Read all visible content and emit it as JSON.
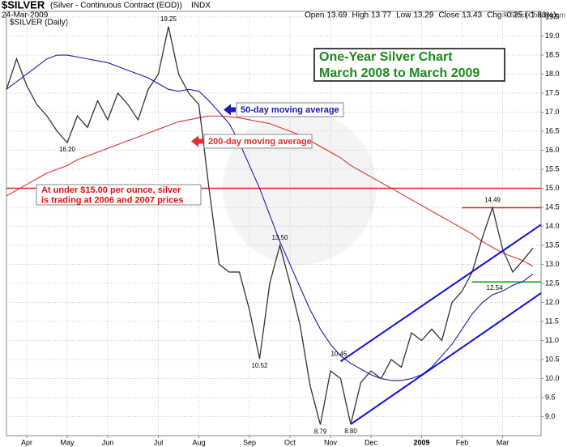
{
  "chart_data": {
    "type": "line",
    "title": "$SILVER",
    "subtitle": "(Silver - Continuous Contract (EOD))",
    "exchange": "INDX",
    "date": "24-Mar-2009",
    "credit": "© StockCharts.com",
    "quote": [
      {
        "label": "Open",
        "value": 13.69
      },
      {
        "label": "High",
        "value": 13.77
      },
      {
        "label": "Low",
        "value": 13.29
      },
      {
        "label": "Close",
        "value": 13.43
      },
      {
        "label": "Chg",
        "value": -0.25,
        "note": "(-1.83%)"
      }
    ],
    "categories": [
      null,
      null,
      "Apr",
      null,
      null,
      null,
      "May",
      null,
      null,
      null,
      "Jun",
      null,
      null,
      null,
      null,
      "Jul",
      null,
      null,
      null,
      "Aug",
      null,
      null,
      null,
      null,
      "Sep",
      null,
      null,
      null,
      "Oct",
      null,
      null,
      null,
      "Nov",
      null,
      null,
      null,
      "Dec",
      null,
      null,
      null,
      null,
      "2009",
      null,
      null,
      null,
      "Feb",
      null,
      null,
      null,
      "Mar",
      null,
      null,
      null
    ],
    "series": [
      {
        "name": "$SILVER (Daily)",
        "color": "#333333",
        "values": [
          17.6,
          18.4,
          17.7,
          17.2,
          16.9,
          16.5,
          16.2,
          16.9,
          16.6,
          17.3,
          16.8,
          17.5,
          17.2,
          16.8,
          17.6,
          18.0,
          19.25,
          18.0,
          17.5,
          17.2,
          15.0,
          13.0,
          12.8,
          12.8,
          11.8,
          10.52,
          12.5,
          13.5,
          12.5,
          11.4,
          9.8,
          8.79,
          10.2,
          10.0,
          8.8,
          9.9,
          10.2,
          10.0,
          10.5,
          10.3,
          11.2,
          11.0,
          11.3,
          11.0,
          12.0,
          12.3,
          12.8,
          13.7,
          14.49,
          13.4,
          12.8,
          13.1,
          13.43
        ],
        "value_labels": [
          null,
          null,
          null,
          null,
          null,
          null,
          "16.20",
          null,
          null,
          null,
          null,
          null,
          null,
          null,
          null,
          null,
          "19.25",
          null,
          null,
          null,
          null,
          null,
          null,
          null,
          null,
          "10.52",
          null,
          "13.50",
          null,
          null,
          null,
          "8.79",
          null,
          null,
          "8.80",
          null,
          null,
          null,
          null,
          null,
          null,
          null,
          null,
          null,
          null,
          null,
          null,
          null,
          "14.49",
          null,
          null,
          null,
          null
        ]
      },
      {
        "name": "50-day moving average",
        "color": "#1a1ab4",
        "values": [
          17.6,
          17.8,
          18.0,
          18.2,
          18.4,
          18.5,
          18.5,
          18.45,
          18.4,
          18.35,
          18.3,
          18.2,
          18.1,
          18.0,
          17.9,
          17.75,
          17.6,
          17.55,
          17.6,
          17.55,
          17.3,
          17.0,
          16.7,
          16.2,
          15.6,
          15.0,
          14.3,
          13.6,
          13.0,
          12.4,
          11.8,
          11.3,
          10.9,
          10.6,
          10.4,
          10.25,
          10.1,
          10.0,
          9.95,
          9.95,
          10.0,
          10.1,
          10.3,
          10.6,
          10.9,
          11.3,
          11.7,
          12.0,
          12.2,
          12.3,
          12.45,
          12.55,
          12.75
        ]
      },
      {
        "name": "200-day moving average",
        "color": "#e03030",
        "values": [
          14.8,
          14.95,
          15.1,
          15.25,
          15.4,
          15.5,
          15.6,
          15.75,
          15.85,
          15.95,
          16.05,
          16.15,
          16.25,
          16.35,
          16.45,
          16.55,
          16.65,
          16.75,
          16.8,
          16.85,
          16.9,
          16.9,
          16.88,
          16.85,
          16.8,
          16.75,
          16.7,
          16.6,
          16.5,
          16.4,
          16.25,
          16.1,
          15.95,
          15.8,
          15.6,
          15.45,
          15.3,
          15.15,
          15.0,
          14.85,
          14.7,
          14.55,
          14.4,
          14.25,
          14.1,
          13.95,
          13.8,
          13.6,
          13.45,
          13.3,
          13.2,
          13.1,
          12.95
        ]
      }
    ],
    "trendlines": [
      {
        "color": "#1010e0",
        "from": [
          33,
          10.45
        ],
        "to": [
          52,
          13.9
        ],
        "label": "10.45"
      },
      {
        "color": "#1010e0",
        "from": [
          34,
          8.8
        ],
        "to": [
          52,
          12.1
        ]
      }
    ],
    "levels": [
      {
        "value": 15.0,
        "color": "#e02020",
        "from": 0
      },
      {
        "value": 14.49,
        "color": "#e02020",
        "from": 45
      },
      {
        "value": 12.54,
        "color": "#1a9a1a",
        "from": 46,
        "label": "12.54"
      }
    ],
    "annotations": [
      {
        "lines": [
          "One-Year Silver Chart",
          "March 2008 to March 2009"
        ],
        "color": "#1a8a1a"
      },
      {
        "lines": [
          "At under $15.00 per ounce, silver",
          "is trading at 2006 and 2007 prices"
        ],
        "color": "#e01010"
      }
    ],
    "ylim": [
      8.5,
      19.65
    ],
    "yticks": [
      {
        "value": 9,
        "label": "9.0"
      },
      9.5,
      {
        "value": 10,
        "label": "10.0"
      },
      10.5,
      {
        "value": 11,
        "label": "11.0"
      },
      11.5,
      {
        "value": 12,
        "label": "12.0"
      },
      12.5,
      {
        "value": 13,
        "label": "13.0"
      },
      13.5,
      {
        "value": 14,
        "label": "14.0"
      },
      14.5,
      {
        "value": 15,
        "label": "15.0"
      },
      15.5,
      {
        "value": 16,
        "label": "16.0"
      },
      16.5,
      {
        "value": 17,
        "label": "17.0"
      },
      17.5,
      {
        "value": 18,
        "label": "18.0"
      },
      18.5,
      {
        "value": 19,
        "label": "19.0"
      },
      19.5
    ],
    "grid": true
  }
}
